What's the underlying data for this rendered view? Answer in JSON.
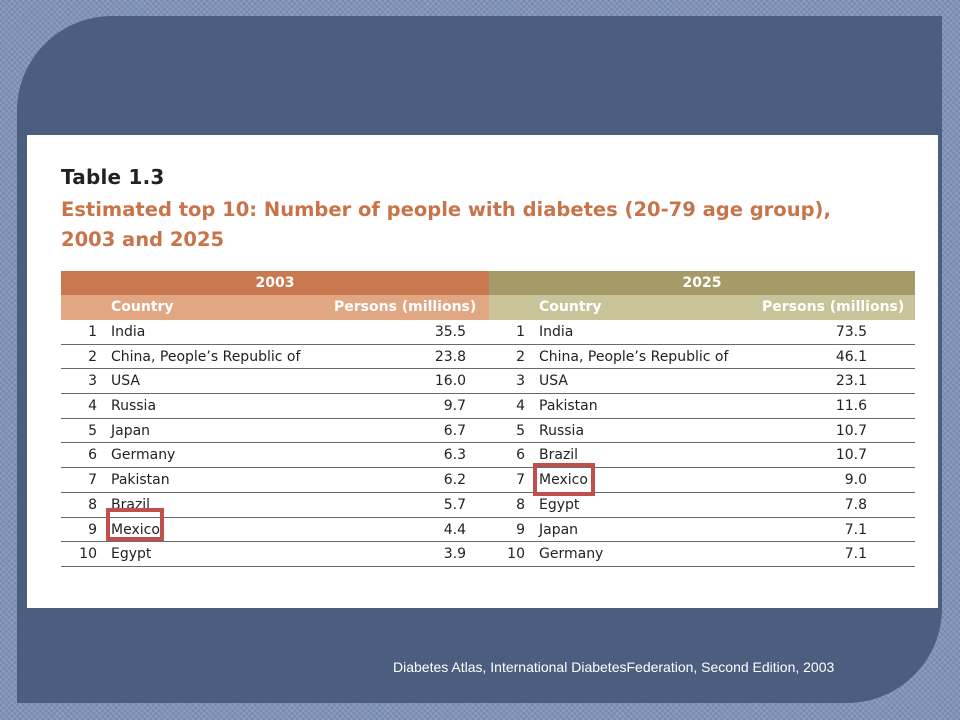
{
  "table": {
    "heading": "Table 1.3",
    "caption_line1": "Estimated top 10: Number of people with diabetes (20-79 age group),",
    "caption_line2": "2003 and 2025",
    "year_left": "2003",
    "year_right": "2025",
    "col_country": "Country",
    "col_persons": "Persons (millions)",
    "rows_2003": [
      {
        "rank": "1",
        "country": "India",
        "value": "35.5"
      },
      {
        "rank": "2",
        "country": "China, People’s Republic of",
        "value": "23.8"
      },
      {
        "rank": "3",
        "country": "USA",
        "value": "16.0"
      },
      {
        "rank": "4",
        "country": "Russia",
        "value": "9.7"
      },
      {
        "rank": "5",
        "country": "Japan",
        "value": "6.7"
      },
      {
        "rank": "6",
        "country": "Germany",
        "value": "6.3"
      },
      {
        "rank": "7",
        "country": "Pakistan",
        "value": "6.2"
      },
      {
        "rank": "8",
        "country": "Brazil",
        "value": "5.7"
      },
      {
        "rank": "9",
        "country": "Mexico",
        "value": "4.4"
      },
      {
        "rank": "10",
        "country": "Egypt",
        "value": "3.9"
      }
    ],
    "rows_2025": [
      {
        "rank": "1",
        "country": "India",
        "value": "73.5"
      },
      {
        "rank": "2",
        "country": "China, People’s Republic of",
        "value": "46.1"
      },
      {
        "rank": "3",
        "country": "USA",
        "value": "23.1"
      },
      {
        "rank": "4",
        "country": "Pakistan",
        "value": "11.6"
      },
      {
        "rank": "5",
        "country": "Russia",
        "value": "10.7"
      },
      {
        "rank": "6",
        "country": "Brazil",
        "value": "10.7"
      },
      {
        "rank": "7",
        "country": "Mexico",
        "value": "9.0"
      },
      {
        "rank": "8",
        "country": "Egypt",
        "value": "7.8"
      },
      {
        "rank": "9",
        "country": "Japan",
        "value": "7.1"
      },
      {
        "rank": "10",
        "country": "Germany",
        "value": "7.1"
      }
    ]
  },
  "source": "Diabetes Atlas, International  DiabetesFederation, Second Edition, 2003",
  "colors": {
    "panel": "#4b5e80",
    "year_2003_band": "#c97850",
    "year_2025_band": "#a49b68",
    "caption": "#c8744a",
    "highlight": "#c0504d"
  }
}
